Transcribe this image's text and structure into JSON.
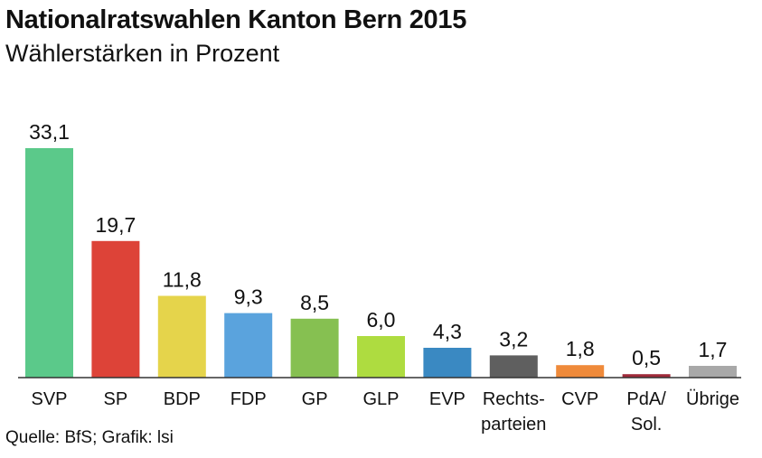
{
  "title": "Nationalratswahlen Kanton Bern 2015",
  "subtitle": "Wählerstärken in Prozent",
  "source": "Quelle: BfS; Grafik: lsi",
  "chart_data": {
    "type": "bar",
    "title": "Nationalratswahlen Kanton Bern 2015",
    "subtitle": "Wählerstärken in Prozent",
    "xlabel": "",
    "ylabel": "",
    "ylim": [
      0,
      33.1
    ],
    "grid": false,
    "categories": [
      {
        "label": [
          "SVP"
        ],
        "value": 33.1,
        "value_label": "33,1",
        "color": "#5bc98a"
      },
      {
        "label": [
          "SP"
        ],
        "value": 19.7,
        "value_label": "19,7",
        "color": "#dd4338"
      },
      {
        "label": [
          "BDP"
        ],
        "value": 11.8,
        "value_label": "11,8",
        "color": "#e5d44b"
      },
      {
        "label": [
          "FDP"
        ],
        "value": 9.3,
        "value_label": "9,3",
        "color": "#5aa3dd"
      },
      {
        "label": [
          "GP"
        ],
        "value": 8.5,
        "value_label": "8,5",
        "color": "#86c051"
      },
      {
        "label": [
          "GLP"
        ],
        "value": 6.0,
        "value_label": "6,0",
        "color": "#aedc40"
      },
      {
        "label": [
          "EVP"
        ],
        "value": 4.3,
        "value_label": "4,3",
        "color": "#3a89c2"
      },
      {
        "label": [
          "Rechts-",
          "parteien"
        ],
        "value": 3.2,
        "value_label": "3,2",
        "color": "#5f5f5f"
      },
      {
        "label": [
          "CVP"
        ],
        "value": 1.8,
        "value_label": "1,8",
        "color": "#ef8a3a"
      },
      {
        "label": [
          "PdA/",
          "Sol."
        ],
        "value": 0.5,
        "value_label": "0,5",
        "color": "#a02a3a"
      },
      {
        "label": [
          "Übrige"
        ],
        "value": 1.7,
        "value_label": "1,7",
        "color": "#a8a8a8"
      }
    ]
  }
}
